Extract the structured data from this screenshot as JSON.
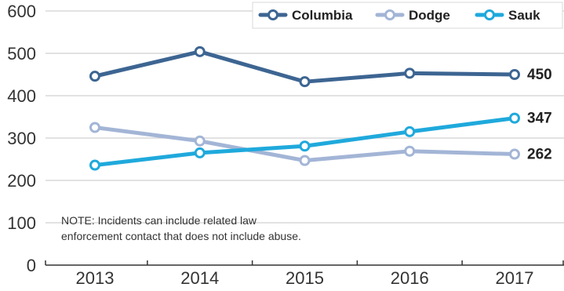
{
  "colors": {
    "Columbia": "#3d6592",
    "Dodge": "#a3b5d6",
    "Sauk": "#1fa9dc",
    "gridline": "#d0d0d0",
    "axis": "#333333"
  },
  "chart_data": {
    "type": "line",
    "title": "",
    "xlabel": "",
    "ylabel": "",
    "x": [
      "2013",
      "2014",
      "2015",
      "2016",
      "2017"
    ],
    "ylim": [
      0,
      600
    ],
    "yticks": [
      0,
      100,
      200,
      300,
      400,
      500,
      600
    ],
    "grid": true,
    "legend_position": "top-right",
    "series": [
      {
        "name": "Columbia",
        "values": [
          446,
          504,
          433,
          453,
          450
        ],
        "end_label": "450"
      },
      {
        "name": "Dodge",
        "values": [
          325,
          293,
          247,
          269,
          262
        ],
        "end_label": "262"
      },
      {
        "name": "Sauk",
        "values": [
          236,
          265,
          281,
          315,
          347
        ],
        "end_label": "347"
      }
    ],
    "note": [
      "NOTE: Incidents can include related law",
      "enforcement contact that does not include abuse."
    ]
  }
}
